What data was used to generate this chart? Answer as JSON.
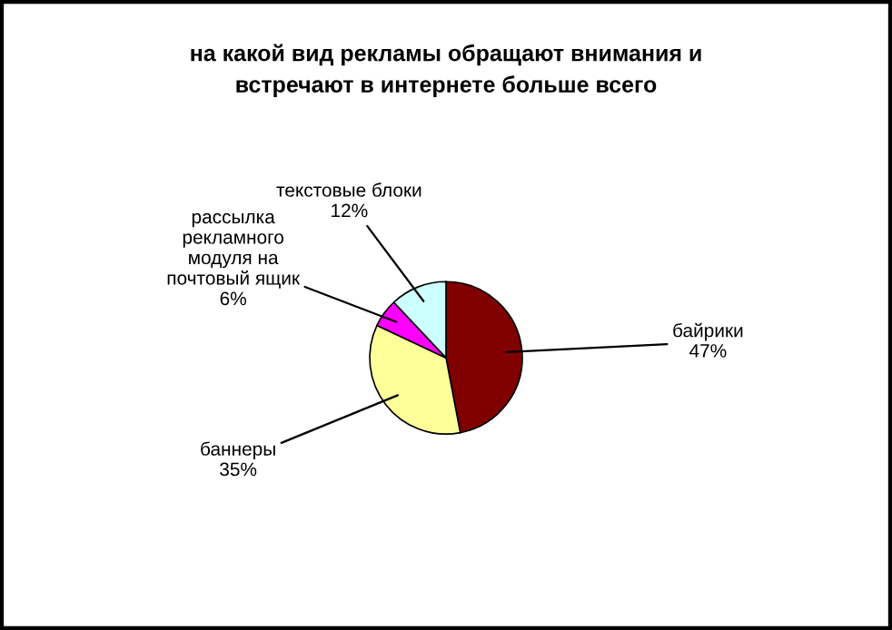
{
  "chart_data": {
    "type": "pie",
    "title": "на какой вид рекламы обращают внимания и\nвстречают в интернете больше всего",
    "categories": [
      "байрики",
      "баннеры",
      "рассылка\nрекламного\nмодуля на\nпочтовый ящик",
      "текстовые блоки"
    ],
    "values": [
      47,
      35,
      6,
      12
    ],
    "value_labels": [
      "47%",
      "35%",
      "6%",
      "12%"
    ],
    "colors": [
      "#800000",
      "#ffff99",
      "#ff00ff",
      "#ccffff"
    ],
    "legend": false
  }
}
